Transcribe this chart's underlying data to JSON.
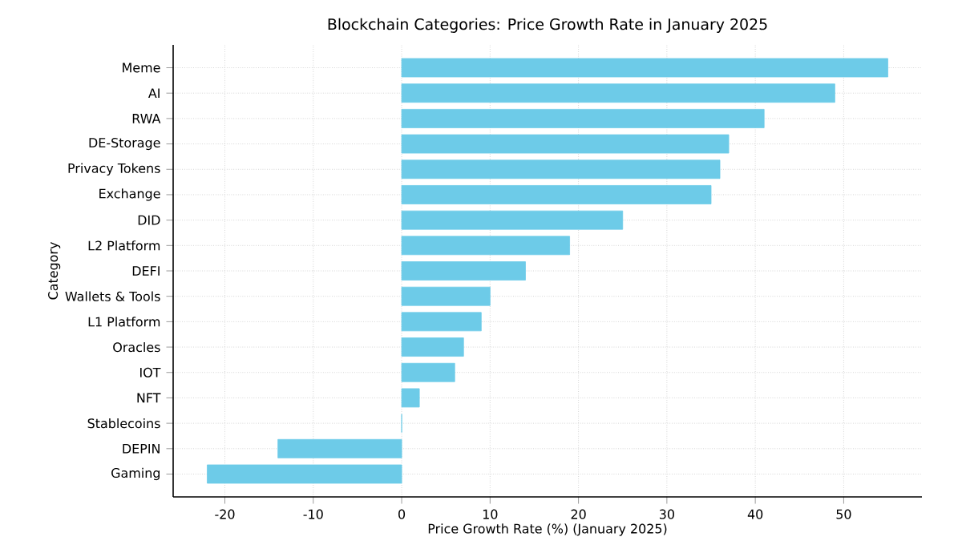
{
  "chart_data": {
    "type": "bar",
    "orientation": "horizontal",
    "title": "Blockchain Categories: Price Growth Rate in January 2025",
    "xlabel": "Price Growth Rate (%) (January 2025)",
    "ylabel": "Category",
    "categories": [
      "Meme",
      "AI",
      "RWA",
      "DE-Storage",
      "Privacy Tokens",
      "Exchange",
      "DID",
      "L2 Platform",
      "DEFI",
      "Wallets & Tools",
      "L1 Platform",
      "Oracles",
      "IOT",
      "NFT",
      "Stablecoins",
      "DEPIN",
      "Gaming"
    ],
    "values": [
      55,
      49,
      41,
      37,
      36,
      35,
      25,
      19,
      14,
      10,
      9,
      7,
      6,
      2,
      0,
      -14,
      -22
    ],
    "color": "#6dcbe8",
    "xlim": [
      -25.85,
      58.85
    ],
    "xticks": [
      -20,
      -10,
      0,
      10,
      20,
      30,
      40,
      50
    ],
    "grid": true
  }
}
